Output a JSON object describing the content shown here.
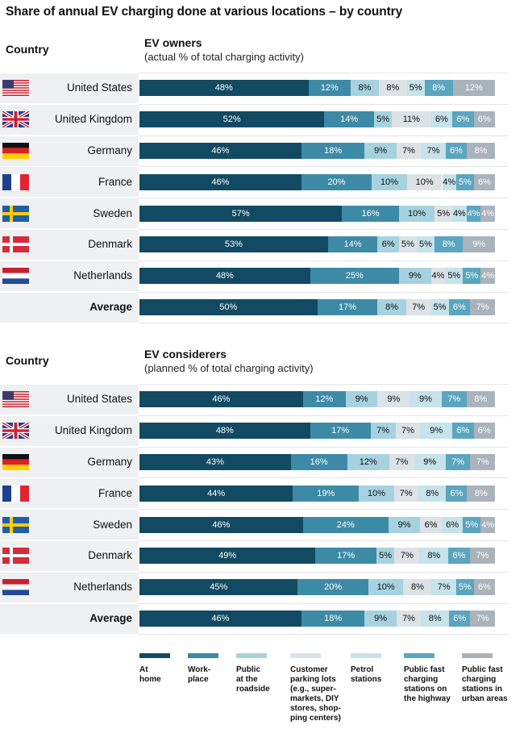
{
  "chart_data": {
    "type": "bar",
    "title": "Share of annual EV charging done at various locations – by country",
    "colors": [
      "#114a62",
      "#3d8aa6",
      "#a6d2df",
      "#dde2e6",
      "#c6e2ea",
      "#5aa5bf",
      "#a9b3bb"
    ],
    "label_colors": [
      "#ffffff",
      "#ffffff",
      "#111111",
      "#111111",
      "#111111",
      "#ffffff",
      "#ffffff"
    ],
    "legend": [
      "At home",
      "Work-place",
      "Public at the roadside",
      "Customer parking lots (e.g., super-markets, DIY stores, shop-ping centers)",
      "Petrol stations",
      "Public fast charging stations on the highway",
      "Public fast charging stations in urban areas"
    ],
    "legend_lines": [
      [
        "At",
        "home"
      ],
      [
        "Work-",
        "place"
      ],
      [
        "Public",
        "at the",
        "roadside"
      ],
      [
        "Customer",
        "parking lots",
        "(e.g., super-",
        "markets, DIY",
        "stores, shop-",
        "ping centers)"
      ],
      [
        "Petrol",
        "stations"
      ],
      [
        "Public fast",
        "charging",
        "stations on",
        "the highway"
      ],
      [
        "Public fast",
        "charging",
        "stations in",
        "urban areas"
      ]
    ],
    "panels": [
      {
        "country_header": "Country",
        "heading": "EV owners",
        "subheading": "(actual % of total charging activity)",
        "rows": [
          {
            "country": "United States",
            "flag": "us",
            "values": [
              48,
              12,
              8,
              8,
              5,
              8,
              12
            ]
          },
          {
            "country": "United Kingdom",
            "flag": "uk",
            "values": [
              52,
              14,
              5,
              11,
              6,
              6,
              6
            ]
          },
          {
            "country": "Germany",
            "flag": "de",
            "values": [
              46,
              18,
              9,
              7,
              7,
              6,
              8
            ]
          },
          {
            "country": "France",
            "flag": "fr",
            "values": [
              46,
              20,
              10,
              10,
              4,
              5,
              6
            ]
          },
          {
            "country": "Sweden",
            "flag": "se",
            "values": [
              57,
              16,
              10,
              5,
              4,
              4,
              4
            ]
          },
          {
            "country": "Denmark",
            "flag": "dk",
            "values": [
              53,
              14,
              6,
              5,
              5,
              8,
              9
            ]
          },
          {
            "country": "Netherlands",
            "flag": "nl",
            "values": [
              48,
              25,
              9,
              4,
              5,
              5,
              4
            ]
          },
          {
            "country": "Average",
            "flag": "",
            "values": [
              50,
              17,
              8,
              7,
              5,
              6,
              7
            ]
          }
        ]
      },
      {
        "country_header": "Country",
        "heading": "EV considerers",
        "subheading": "(planned % of total charging activity)",
        "rows": [
          {
            "country": "United States",
            "flag": "us",
            "values": [
              46,
              12,
              9,
              9,
              9,
              7,
              8
            ]
          },
          {
            "country": "United Kingdom",
            "flag": "uk",
            "values": [
              48,
              17,
              7,
              7,
              9,
              6,
              6
            ]
          },
          {
            "country": "Germany",
            "flag": "de",
            "values": [
              43,
              16,
              12,
              7,
              9,
              7,
              7
            ]
          },
          {
            "country": "France",
            "flag": "fr",
            "values": [
              44,
              19,
              10,
              7,
              8,
              6,
              8
            ]
          },
          {
            "country": "Sweden",
            "flag": "se",
            "values": [
              46,
              24,
              9,
              6,
              6,
              5,
              4
            ]
          },
          {
            "country": "Denmark",
            "flag": "dk",
            "values": [
              49,
              17,
              5,
              7,
              8,
              6,
              7
            ]
          },
          {
            "country": "Netherlands",
            "flag": "nl",
            "values": [
              45,
              20,
              10,
              8,
              7,
              5,
              6
            ]
          },
          {
            "country": "Average",
            "flag": "",
            "values": [
              46,
              18,
              9,
              7,
              8,
              6,
              7
            ]
          }
        ]
      }
    ]
  }
}
